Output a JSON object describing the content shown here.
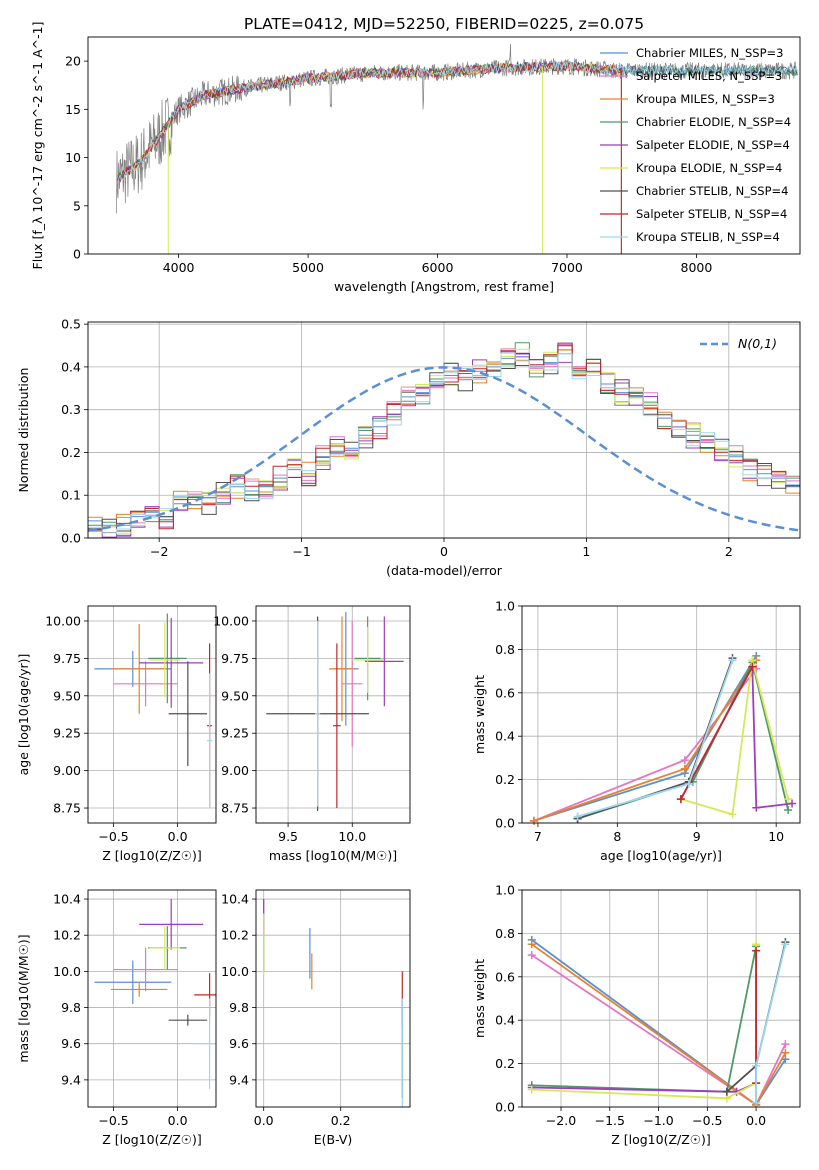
{
  "figure": {
    "title": "PLATE=0412, MJD=52250, FIBERID=0225, z=0.075"
  },
  "chart_data": [
    {
      "id": "spectrum",
      "type": "line",
      "xlabel": "wavelength [Angstrom, rest frame]",
      "ylabel": "Flux [f_λ 10^-17 erg cm^-2 s^-1 A^-1]",
      "xlim": [
        3300,
        8800
      ],
      "ylim": [
        0,
        22.5
      ],
      "xticks": [
        "4000",
        "5000",
        "6000",
        "7000",
        "8000"
      ],
      "yticks": [
        "0",
        "5",
        "10",
        "15",
        "20"
      ],
      "grid": false,
      "legend_loc": "right",
      "legend": [
        {
          "label": "Chabrier MILES, N_SSP=3",
          "color": "#5b8fd4"
        },
        {
          "label": "Salpeter MILES, N_SSP=3",
          "color": "#e377c2"
        },
        {
          "label": "Kroupa MILES, N_SSP=3",
          "color": "#e8822a"
        },
        {
          "label": "Chabrier ELODIE, N_SSP=4",
          "color": "#4e9a6a"
        },
        {
          "label": "Salpeter ELODIE, N_SSP=4",
          "color": "#9c3fb8"
        },
        {
          "label": "Kroupa ELODIE, N_SSP=4",
          "color": "#d6e85a"
        },
        {
          "label": "Chabrier STELIB, N_SSP=4",
          "color": "#505050"
        },
        {
          "label": "Salpeter STELIB, N_SSP=4",
          "color": "#c0282d"
        },
        {
          "label": "Kroupa STELIB, N_SSP=4",
          "color": "#9fd6ee"
        }
      ],
      "data_series": {
        "name": "data",
        "color": "#808080"
      },
      "continuum": {
        "x": [
          3500,
          3700,
          3900,
          4000,
          4200,
          4500,
          5000,
          5500,
          6000,
          6500,
          7000,
          7400
        ],
        "y": [
          7.5,
          9.5,
          13,
          15,
          16.5,
          17.2,
          18.2,
          18.8,
          18.8,
          19.3,
          19.5,
          19.0
        ]
      },
      "model_cutoffs": [
        {
          "x": 3920,
          "color": "#d6e85a"
        },
        {
          "x": 6810,
          "color": "#d6e85a"
        },
        {
          "x": 7420,
          "color": "#e8822a"
        },
        {
          "x": 7420,
          "color": "#c0282d"
        }
      ]
    },
    {
      "id": "residuals",
      "type": "histogram",
      "xlabel": "(data-model)/error",
      "ylabel": "Normed distribution",
      "xlim": [
        -2.5,
        2.5
      ],
      "ylim": [
        0,
        0.505
      ],
      "xticks": [
        "−2",
        "−1",
        "0",
        "1",
        "2"
      ],
      "yticks": [
        "0.0",
        "0.1",
        "0.2",
        "0.3",
        "0.4",
        "0.5"
      ],
      "grid": true,
      "bin_width": 0.1,
      "bin_start": -2.5,
      "legend": [
        {
          "label": "N(0,1)",
          "color": "#5b8fd4"
        }
      ],
      "series": [
        {
          "name": "Chabrier MILES, N_SSP=3",
          "color": "#5b8fd4",
          "values": [
            0.04,
            0.03,
            0.03,
            0.05,
            0.06,
            0.05,
            0.08,
            0.09,
            0.08,
            0.1,
            0.12,
            0.11,
            0.12,
            0.14,
            0.16,
            0.15,
            0.19,
            0.22,
            0.21,
            0.24,
            0.26,
            0.29,
            0.33,
            0.34,
            0.36,
            0.38,
            0.37,
            0.39,
            0.4,
            0.42,
            0.43,
            0.4,
            0.41,
            0.44,
            0.38,
            0.39,
            0.36,
            0.34,
            0.33,
            0.31,
            0.28,
            0.26,
            0.24,
            0.23,
            0.21,
            0.19,
            0.16,
            0.15,
            0.14,
            0.12,
            0.1,
            0.09,
            0.07,
            0.08,
            0.06,
            0.05,
            0.04,
            0.03,
            0.03,
            0.02
          ]
        }
      ],
      "normal_curve": {
        "mean": 0,
        "sigma": 1,
        "label": "N(0,1)"
      }
    },
    {
      "id": "age-vs-Z",
      "type": "errorbar",
      "xlabel": "Z [log10(Z/Z☉)]",
      "ylabel": "age [log10(age/yr)]",
      "xlim": [
        -0.7,
        0.3
      ],
      "ylim": [
        8.65,
        10.1
      ],
      "xticks": [
        "−0.5",
        "0.0"
      ],
      "yticks": [
        "8.75",
        "9.00",
        "9.25",
        "9.50",
        "9.75",
        "10.00"
      ],
      "grid": true,
      "points": [
        {
          "x": -0.35,
          "y": 9.68,
          "xerr": 0.3,
          "yerr": 0.12,
          "color": "#5b8fd4"
        },
        {
          "x": -0.25,
          "y": 9.58,
          "xerr": 0.25,
          "yerr": 0.15,
          "color": "#e377c2"
        },
        {
          "x": -0.3,
          "y": 9.68,
          "xerr": 0.22,
          "yerr": 0.3,
          "color": "#e8822a"
        },
        {
          "x": -0.08,
          "y": 9.75,
          "xerr": 0.15,
          "yerr": 0.3,
          "color": "#4e9a6a"
        },
        {
          "x": -0.05,
          "y": 9.72,
          "xerr": 0.25,
          "yerr": 0.3,
          "color": "#9c3fb8"
        },
        {
          "x": -0.1,
          "y": 9.74,
          "xerr": 0.12,
          "yerr": 0.25,
          "color": "#d6e85a"
        },
        {
          "x": 0.08,
          "y": 9.38,
          "xerr": 0.15,
          "yerr": 0.35,
          "color": "#505050"
        },
        {
          "x": 0.25,
          "y": 9.3,
          "xerr": 0.02,
          "yerr": 0.55,
          "color": "#c0282d"
        },
        {
          "x": 0.25,
          "y": 9.2,
          "xerr": 0.02,
          "yerr": 0.45,
          "color": "#9fd6ee"
        }
      ]
    },
    {
      "id": "age-vs-mass",
      "type": "errorbar",
      "xlabel": "mass [log10(M/M☉)]",
      "ylabel": "",
      "xlim": [
        9.25,
        10.45
      ],
      "ylim": [
        8.65,
        10.1
      ],
      "xticks": [
        "9.5",
        "10.0"
      ],
      "yticks": [
        "8.75",
        "9.00",
        "9.25",
        "9.50",
        "9.75",
        "10.00"
      ],
      "grid": true,
      "points": [
        {
          "x": 9.95,
          "y": 9.68,
          "xerr": 0.1,
          "yerr": 0.38,
          "color": "#5b8fd4"
        },
        {
          "x": 10.0,
          "y": 9.58,
          "xerr": 0.08,
          "yerr": 0.42,
          "color": "#e377c2"
        },
        {
          "x": 9.92,
          "y": 9.68,
          "xerr": 0.1,
          "yerr": 0.35,
          "color": "#e8822a"
        },
        {
          "x": 10.12,
          "y": 9.75,
          "xerr": 0.1,
          "yerr": 0.28,
          "color": "#4e9a6a"
        },
        {
          "x": 10.25,
          "y": 9.73,
          "xerr": 0.15,
          "yerr": 0.3,
          "color": "#9c3fb8"
        },
        {
          "x": 10.12,
          "y": 9.74,
          "xerr": 0.12,
          "yerr": 0.22,
          "color": "#d6e85a"
        },
        {
          "x": 9.73,
          "y": 9.38,
          "xerr": 0.4,
          "yerr": 0.65,
          "color": "#505050"
        },
        {
          "x": 9.88,
          "y": 9.3,
          "xerr": 0.03,
          "yerr": 0.55,
          "color": "#c0282d"
        },
        {
          "x": 9.73,
          "y": 9.38,
          "xerr": 0.02,
          "yerr": 0.62,
          "color": "#9fd6ee"
        }
      ]
    },
    {
      "id": "mass-weight-vs-age",
      "type": "line",
      "xlabel": "age  [log10(age/yr)]",
      "ylabel": "mass weight",
      "xlim": [
        6.8,
        10.3
      ],
      "ylim": [
        0,
        1.0
      ],
      "xticks": [
        "7",
        "8",
        "9",
        "10"
      ],
      "yticks": [
        "0.0",
        "0.2",
        "0.4",
        "0.6",
        "0.8",
        "1.0"
      ],
      "grid": true,
      "series": [
        {
          "name": "Chabrier MILES, N_SSP=3",
          "color": "#5b8fd4",
          "x": [
            6.95,
            8.85,
            9.75
          ],
          "y": [
            0.01,
            0.23,
            0.77
          ]
        },
        {
          "name": "Salpeter MILES, N_SSP=3",
          "color": "#e377c2",
          "x": [
            6.95,
            8.85,
            9.75
          ],
          "y": [
            0.01,
            0.29,
            0.71
          ]
        },
        {
          "name": "Kroupa MILES, N_SSP=3",
          "color": "#e8822a",
          "x": [
            6.95,
            8.85,
            9.75
          ],
          "y": [
            0.01,
            0.25,
            0.75
          ]
        },
        {
          "name": "Chabrier ELODIE, N_SSP=4",
          "color": "#4e9a6a",
          "x": [
            7.5,
            8.95,
            9.7,
            10.15
          ],
          "y": [
            0.02,
            0.19,
            0.74,
            0.06
          ]
        },
        {
          "name": "Salpeter ELODIE, N_SSP=4",
          "color": "#9c3fb8",
          "x": [
            8.8,
            9.7,
            9.75,
            10.2
          ],
          "y": [
            0.11,
            0.72,
            0.07,
            0.09
          ]
        },
        {
          "name": "Kroupa ELODIE, N_SSP=4",
          "color": "#d6e85a",
          "x": [
            8.8,
            9.45,
            9.7,
            10.15
          ],
          "y": [
            0.11,
            0.04,
            0.75,
            0.11
          ]
        },
        {
          "name": "Chabrier STELIB, N_SSP=4",
          "color": "#505050",
          "x": [
            7.5,
            8.9,
            9.45
          ],
          "y": [
            0.02,
            0.19,
            0.76
          ]
        },
        {
          "name": "Salpeter STELIB, N_SSP=4",
          "color": "#c0282d",
          "x": [
            8.8,
            9.7
          ],
          "y": [
            0.11,
            0.72
          ]
        },
        {
          "name": "Kroupa STELIB, N_SSP=4",
          "color": "#9fd6ee",
          "x": [
            7.5,
            8.9,
            9.45
          ],
          "y": [
            0.03,
            0.18,
            0.75
          ]
        }
      ]
    },
    {
      "id": "mass-vs-Z",
      "type": "errorbar",
      "xlabel": "Z [log10(Z/Z☉)]",
      "ylabel": "mass [log10(M/M☉)]",
      "xlim": [
        -0.7,
        0.3
      ],
      "ylim": [
        9.25,
        10.45
      ],
      "xticks": [
        "−0.5",
        "0.0"
      ],
      "yticks": [
        "9.4",
        "9.6",
        "9.8",
        "10.0",
        "10.2",
        "10.4"
      ],
      "grid": true,
      "points": [
        {
          "x": -0.35,
          "y": 9.94,
          "xerr": 0.3,
          "yerr": 0.12,
          "color": "#5b8fd4"
        },
        {
          "x": -0.25,
          "y": 10.01,
          "xerr": 0.25,
          "yerr": 0.12,
          "color": "#e377c2"
        },
        {
          "x": -0.3,
          "y": 9.9,
          "xerr": 0.22,
          "yerr": 0.04,
          "color": "#e8822a"
        },
        {
          "x": -0.08,
          "y": 10.13,
          "xerr": 0.15,
          "yerr": 0.12,
          "color": "#4e9a6a"
        },
        {
          "x": -0.05,
          "y": 10.26,
          "xerr": 0.25,
          "yerr": 0.14,
          "color": "#9c3fb8"
        },
        {
          "x": -0.1,
          "y": 10.13,
          "xerr": 0.12,
          "yerr": 0.12,
          "color": "#d6e85a"
        },
        {
          "x": 0.08,
          "y": 9.73,
          "xerr": 0.15,
          "yerr": 0.03,
          "color": "#505050"
        },
        {
          "x": 0.25,
          "y": 9.87,
          "xerr": 0.12,
          "yerr": 0.12,
          "color": "#c0282d"
        },
        {
          "x": 0.25,
          "y": 9.6,
          "xerr": 0.12,
          "yerr": 0.25,
          "color": "#9fd6ee"
        }
      ]
    },
    {
      "id": "mass-vs-ebv",
      "type": "errorbar",
      "xlabel": "E(B-V)",
      "ylabel": "",
      "xlim": [
        -0.02,
        0.38
      ],
      "ylim": [
        9.25,
        10.45
      ],
      "xticks": [
        "0.0",
        "0.2"
      ],
      "yticks": [
        "9.4",
        "9.6",
        "9.8",
        "10.0",
        "10.2",
        "10.4"
      ],
      "grid": true,
      "points": [
        {
          "x": 0.12,
          "y": 10.1,
          "xerr": 0,
          "yerr": 0.14,
          "color": "#5b8fd4"
        },
        {
          "x": 0.0,
          "y": 10.3,
          "xerr": 0,
          "yerr": 0.1,
          "color": "#e377c2"
        },
        {
          "x": 0.125,
          "y": 10.0,
          "xerr": 0,
          "yerr": 0.1,
          "color": "#e8822a"
        },
        {
          "x": 0.0,
          "y": 10.1,
          "xerr": 0,
          "yerr": 0.1,
          "color": "#4e9a6a"
        },
        {
          "x": 0.0,
          "y": 10.3,
          "xerr": 0,
          "yerr": 0.1,
          "color": "#9c3fb8"
        },
        {
          "x": 0.0,
          "y": 10.15,
          "xerr": 0,
          "yerr": 0.17,
          "color": "#d6e85a"
        },
        {
          "x": 0.36,
          "y": 9.55,
          "xerr": 0,
          "yerr": 0.25,
          "color": "#505050"
        },
        {
          "x": 0.36,
          "y": 9.85,
          "xerr": 0,
          "yerr": 0.15,
          "color": "#c0282d"
        },
        {
          "x": 0.36,
          "y": 9.55,
          "xerr": 0,
          "yerr": 0.3,
          "color": "#9fd6ee"
        }
      ]
    },
    {
      "id": "mass-weight-vs-Z",
      "type": "line",
      "xlabel": "Z [log10(Z/Z☉)]",
      "ylabel": "mass weight",
      "xlim": [
        -2.4,
        0.45
      ],
      "ylim": [
        0,
        1.0
      ],
      "xticks": [
        "−2.0",
        "−1.5",
        "−1.0",
        "−0.5",
        "0.0"
      ],
      "yticks": [
        "0.0",
        "0.2",
        "0.4",
        "0.6",
        "0.8",
        "1.0"
      ],
      "grid": true,
      "series": [
        {
          "name": "Chabrier MILES, N_SSP=3",
          "color": "#5b8fd4",
          "x": [
            -2.3,
            0.0,
            0.3
          ],
          "y": [
            0.77,
            0.01,
            0.22
          ]
        },
        {
          "name": "Salpeter MILES, N_SSP=3",
          "color": "#e377c2",
          "x": [
            -2.3,
            0.0,
            0.3
          ],
          "y": [
            0.7,
            0.01,
            0.29
          ]
        },
        {
          "name": "Kroupa MILES, N_SSP=3",
          "color": "#e8822a",
          "x": [
            -2.3,
            0.0,
            0.3
          ],
          "y": [
            0.75,
            0.01,
            0.25
          ]
        },
        {
          "name": "Chabrier ELODIE, N_SSP=4",
          "color": "#4e9a6a",
          "x": [
            -2.3,
            -0.3,
            0.0,
            0.0
          ],
          "y": [
            0.1,
            0.07,
            0.74,
            0.02
          ]
        },
        {
          "name": "Salpeter ELODIE, N_SSP=4",
          "color": "#9c3fb8",
          "x": [
            -2.3,
            -0.2,
            0.0,
            0.0
          ],
          "y": [
            0.09,
            0.07,
            0.11,
            0.72
          ]
        },
        {
          "name": "Kroupa ELODIE, N_SSP=4",
          "color": "#d6e85a",
          "x": [
            -2.3,
            -0.3,
            0.0,
            0.0
          ],
          "y": [
            0.08,
            0.04,
            0.11,
            0.75
          ]
        },
        {
          "name": "Chabrier STELIB, N_SSP=4",
          "color": "#505050",
          "x": [
            -0.3,
            0.0,
            0.3
          ],
          "y": [
            0.07,
            0.19,
            0.76
          ]
        },
        {
          "name": "Salpeter STELIB, N_SSP=4",
          "color": "#c0282d",
          "x": [
            0.0,
            0.0
          ],
          "y": [
            0.11,
            0.72
          ]
        },
        {
          "name": "Kroupa STELIB, N_SSP=4",
          "color": "#9fd6ee",
          "x": [
            0.0,
            0.0,
            0.3
          ],
          "y": [
            0.02,
            0.19,
            0.75
          ]
        }
      ]
    }
  ]
}
